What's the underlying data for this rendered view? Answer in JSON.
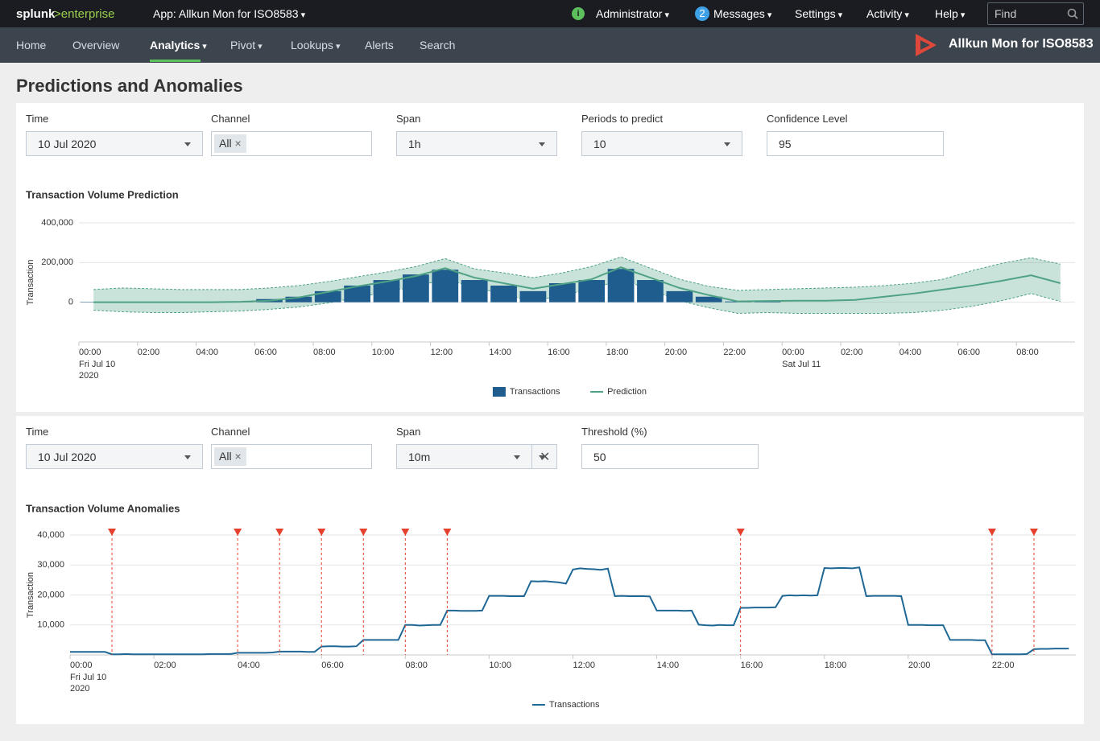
{
  "top_bar": {
    "brand": "splunk",
    "brand_suffix": ">enterprise",
    "app": "App: Allkun Mon for ISO8583",
    "user": "Administrator",
    "messages_count": "2",
    "messages": "Messages",
    "settings": "Settings",
    "activity": "Activity",
    "help": "Help",
    "find": "Find"
  },
  "nav": {
    "items": [
      "Home",
      "Overview",
      "Analytics",
      "Pivot",
      "Lookups",
      "Alerts",
      "Search"
    ],
    "app_title": "Allkun Mon for ISO8583"
  },
  "page_title": "Predictions and Anomalies",
  "panels": [
    {
      "inputs": [
        {
          "label": "Time",
          "value": "10 Jul 2020"
        },
        {
          "label": "Channel",
          "value": "All"
        },
        {
          "label": "Span",
          "value": "1h"
        },
        {
          "label": "Periods to predict",
          "value": "10"
        },
        {
          "label": "Confidence Level",
          "value": "95"
        }
      ]
    },
    {
      "inputs": [
        {
          "label": "Time",
          "value": "10 Jul 2020"
        },
        {
          "label": "Channel",
          "value": "All"
        },
        {
          "label": "Span",
          "value": "10m"
        },
        {
          "label": "Threshold (%)",
          "value": "50"
        }
      ]
    }
  ],
  "chart_data": [
    {
      "type": "bar",
      "title": "Transaction Volume Prediction",
      "y_label": "Transaction",
      "x": [
        "2020-07-10 00:00",
        "2020-07-10 01:00",
        "2020-07-10 02:00",
        "2020-07-10 03:00",
        "2020-07-10 04:00",
        "2020-07-10 05:00",
        "2020-07-10 06:00",
        "2020-07-10 07:00",
        "2020-07-10 08:00",
        "2020-07-10 09:00",
        "2020-07-10 10:00",
        "2020-07-10 11:00",
        "2020-07-10 12:00",
        "2020-07-10 13:00",
        "2020-07-10 14:00",
        "2020-07-10 15:00",
        "2020-07-10 16:00",
        "2020-07-10 17:00",
        "2020-07-10 18:00",
        "2020-07-10 19:00",
        "2020-07-10 20:00",
        "2020-07-10 21:00",
        "2020-07-10 22:00",
        "2020-07-10 23:00",
        "2020-07-11 00:00",
        "2020-07-11 01:00",
        "2020-07-11 02:00",
        "2020-07-11 03:00",
        "2020-07-11 04:00",
        "2020-07-11 05:00",
        "2020-07-11 06:00",
        "2020-07-11 07:00",
        "2020-07-11 08:00",
        "2020-07-11 09:00"
      ],
      "series": [
        {
          "name": "Transactions",
          "type": "bar",
          "color": "#1f5d8e",
          "values": [
            2000,
            1000,
            1000,
            1000,
            1000,
            1000,
            16000,
            28000,
            56000,
            84000,
            112000,
            140000,
            164000,
            112000,
            84000,
            56000,
            96000,
            112000,
            168000,
            112000,
            56000,
            28000,
            4000,
            8000,
            null,
            null,
            null,
            null,
            null,
            null,
            null,
            null,
            null,
            null
          ]
        },
        {
          "name": "Prediction",
          "type": "line",
          "color": "#4fa283",
          "values": [
            0,
            0,
            0,
            0,
            0,
            2000,
            8000,
            24000,
            52000,
            80000,
            104000,
            132000,
            172000,
            124000,
            96000,
            68000,
            92000,
            116000,
            176000,
            124000,
            72000,
            36000,
            4000,
            6000,
            8000,
            8000,
            12000,
            28000,
            44000,
            64000,
            84000,
            108000,
            136000,
            96000
          ]
        }
      ],
      "band": {
        "color": "#4fa283",
        "upper": [
          64000,
          72000,
          68000,
          64000,
          64000,
          64000,
          72000,
          84000,
          104000,
          128000,
          152000,
          180000,
          220000,
          168000,
          148000,
          124000,
          148000,
          180000,
          228000,
          172000,
          116000,
          80000,
          60000,
          64000,
          68000,
          72000,
          76000,
          84000,
          96000,
          116000,
          160000,
          196000,
          224000,
          192000
        ],
        "lower": [
          -40000,
          -48000,
          -52000,
          -52000,
          -48000,
          -44000,
          -36000,
          -24000,
          -4000,
          24000,
          52000,
          80000,
          116000,
          76000,
          40000,
          4000,
          36000,
          64000,
          116000,
          64000,
          8000,
          -28000,
          -56000,
          -52000,
          -56000,
          -56000,
          -56000,
          -56000,
          -52000,
          -40000,
          -20000,
          8000,
          44000,
          4000
        ]
      },
      "xlim": [
        "2020-07-10 00:00",
        "2020-07-11 10:00"
      ],
      "xticks": [
        {
          "value": "2020-07-10 00:00",
          "label": "00:00",
          "sublabel": [
            "Fri Jul 10",
            "2020"
          ]
        },
        {
          "value": "2020-07-10 02:00",
          "label": "02:00"
        },
        {
          "value": "2020-07-10 04:00",
          "label": "04:00"
        },
        {
          "value": "2020-07-10 06:00",
          "label": "06:00"
        },
        {
          "value": "2020-07-10 08:00",
          "label": "08:00"
        },
        {
          "value": "2020-07-10 10:00",
          "label": "10:00"
        },
        {
          "value": "2020-07-10 12:00",
          "label": "12:00"
        },
        {
          "value": "2020-07-10 14:00",
          "label": "14:00"
        },
        {
          "value": "2020-07-10 16:00",
          "label": "16:00"
        },
        {
          "value": "2020-07-10 18:00",
          "label": "18:00"
        },
        {
          "value": "2020-07-10 20:00",
          "label": "20:00"
        },
        {
          "value": "2020-07-10 22:00",
          "label": "22:00"
        },
        {
          "value": "2020-07-11 00:00",
          "label": "00:00",
          "sublabel": [
            "Sat Jul 11"
          ]
        },
        {
          "value": "2020-07-11 02:00",
          "label": "02:00"
        },
        {
          "value": "2020-07-11 04:00",
          "label": "04:00"
        },
        {
          "value": "2020-07-11 06:00",
          "label": "06:00"
        },
        {
          "value": "2020-07-11 08:00",
          "label": "08:00"
        }
      ],
      "ylim": [
        -200000,
        400000
      ],
      "yticks": [
        0,
        {
          "value": 200000,
          "label": "200,000"
        },
        {
          "value": 400000,
          "label": "400,000"
        }
      ],
      "grid": true,
      "legend": "bottom"
    },
    {
      "type": "line",
      "title": "Transaction Volume Anomalies",
      "y_label": "Transaction",
      "x": [
        "2020-07-10 00:00",
        "2020-07-10 00:10",
        "2020-07-10 00:20",
        "2020-07-10 00:30",
        "2020-07-10 00:40",
        "2020-07-10 00:50",
        "2020-07-10 01:00",
        "2020-07-10 01:10",
        "2020-07-10 01:20",
        "2020-07-10 01:30",
        "2020-07-10 01:40",
        "2020-07-10 01:50",
        "2020-07-10 02:00",
        "2020-07-10 02:10",
        "2020-07-10 02:20",
        "2020-07-10 02:30",
        "2020-07-10 02:40",
        "2020-07-10 02:50",
        "2020-07-10 03:00",
        "2020-07-10 03:10",
        "2020-07-10 03:20",
        "2020-07-10 03:30",
        "2020-07-10 03:40",
        "2020-07-10 03:50",
        "2020-07-10 04:00",
        "2020-07-10 04:10",
        "2020-07-10 04:20",
        "2020-07-10 04:30",
        "2020-07-10 04:40",
        "2020-07-10 04:50",
        "2020-07-10 05:00",
        "2020-07-10 05:10",
        "2020-07-10 05:20",
        "2020-07-10 05:30",
        "2020-07-10 05:40",
        "2020-07-10 05:50",
        "2020-07-10 06:00",
        "2020-07-10 06:10",
        "2020-07-10 06:20",
        "2020-07-10 06:30",
        "2020-07-10 06:40",
        "2020-07-10 06:50",
        "2020-07-10 07:00",
        "2020-07-10 07:10",
        "2020-07-10 07:20",
        "2020-07-10 07:30",
        "2020-07-10 07:40",
        "2020-07-10 07:50",
        "2020-07-10 08:00",
        "2020-07-10 08:10",
        "2020-07-10 08:20",
        "2020-07-10 08:30",
        "2020-07-10 08:40",
        "2020-07-10 08:50",
        "2020-07-10 09:00",
        "2020-07-10 09:10",
        "2020-07-10 09:20",
        "2020-07-10 09:30",
        "2020-07-10 09:40",
        "2020-07-10 09:50",
        "2020-07-10 10:00",
        "2020-07-10 10:10",
        "2020-07-10 10:20",
        "2020-07-10 10:30",
        "2020-07-10 10:40",
        "2020-07-10 10:50",
        "2020-07-10 11:00",
        "2020-07-10 11:10",
        "2020-07-10 11:20",
        "2020-07-10 11:30",
        "2020-07-10 11:40",
        "2020-07-10 11:50",
        "2020-07-10 12:00",
        "2020-07-10 12:10",
        "2020-07-10 12:20",
        "2020-07-10 12:30",
        "2020-07-10 12:40",
        "2020-07-10 12:50",
        "2020-07-10 13:00",
        "2020-07-10 13:10",
        "2020-07-10 13:20",
        "2020-07-10 13:30",
        "2020-07-10 13:40",
        "2020-07-10 13:50",
        "2020-07-10 14:00",
        "2020-07-10 14:10",
        "2020-07-10 14:20",
        "2020-07-10 14:30",
        "2020-07-10 14:40",
        "2020-07-10 14:50",
        "2020-07-10 15:00",
        "2020-07-10 15:10",
        "2020-07-10 15:20",
        "2020-07-10 15:30",
        "2020-07-10 15:40",
        "2020-07-10 15:50",
        "2020-07-10 16:00",
        "2020-07-10 16:10",
        "2020-07-10 16:20",
        "2020-07-10 16:30",
        "2020-07-10 16:40",
        "2020-07-10 16:50",
        "2020-07-10 17:00",
        "2020-07-10 17:10",
        "2020-07-10 17:20",
        "2020-07-10 17:30",
        "2020-07-10 17:40",
        "2020-07-10 17:50",
        "2020-07-10 18:00",
        "2020-07-10 18:10",
        "2020-07-10 18:20",
        "2020-07-10 18:30",
        "2020-07-10 18:40",
        "2020-07-10 18:50",
        "2020-07-10 19:00",
        "2020-07-10 19:10",
        "2020-07-10 19:20",
        "2020-07-10 19:30",
        "2020-07-10 19:40",
        "2020-07-10 19:50",
        "2020-07-10 20:00",
        "2020-07-10 20:10",
        "2020-07-10 20:20",
        "2020-07-10 20:30",
        "2020-07-10 20:40",
        "2020-07-10 20:50",
        "2020-07-10 21:00",
        "2020-07-10 21:10",
        "2020-07-10 21:20",
        "2020-07-10 21:30",
        "2020-07-10 21:40",
        "2020-07-10 21:50",
        "2020-07-10 22:00",
        "2020-07-10 22:10",
        "2020-07-10 22:20",
        "2020-07-10 22:30",
        "2020-07-10 22:40",
        "2020-07-10 22:50",
        "2020-07-10 23:00",
        "2020-07-10 23:10",
        "2020-07-10 23:20",
        "2020-07-10 23:30",
        "2020-07-10 23:40",
        "2020-07-10 23:50"
      ],
      "series": [
        {
          "name": "Transactions",
          "type": "line",
          "color": "#1f6896",
          "values": [
            1000,
            1000,
            1000,
            1000,
            1000,
            1000,
            200,
            200,
            300,
            200,
            200,
            200,
            200,
            200,
            200,
            200,
            200,
            200,
            200,
            200,
            300,
            300,
            300,
            300,
            700,
            700,
            700,
            700,
            700,
            800,
            1100,
            1100,
            1100,
            1100,
            1000,
            1000,
            2800,
            2900,
            2900,
            2800,
            2800,
            2900,
            5000,
            5000,
            5000,
            5000,
            5000,
            5000,
            10000,
            10000,
            9800,
            9900,
            10000,
            10000,
            14800,
            14800,
            14700,
            14700,
            14700,
            14800,
            19700,
            19700,
            19700,
            19600,
            19600,
            19600,
            24600,
            24500,
            24600,
            24400,
            24200,
            23800,
            28500,
            28900,
            28700,
            28600,
            28400,
            28800,
            19600,
            19700,
            19600,
            19600,
            19600,
            19500,
            14800,
            14800,
            14800,
            14800,
            14700,
            14800,
            10100,
            9900,
            9800,
            10000,
            9900,
            9900,
            15700,
            15700,
            15800,
            15800,
            15800,
            15900,
            19700,
            19900,
            19800,
            19900,
            19800,
            19900,
            29000,
            28900,
            29000,
            29000,
            28900,
            29200,
            19600,
            19700,
            19700,
            19700,
            19700,
            19600,
            10000,
            10000,
            10000,
            9900,
            9900,
            9900,
            5000,
            5000,
            5000,
            5000,
            4900,
            4900,
            200,
            200,
            200,
            200,
            200,
            300,
            1900,
            2000,
            2000,
            2100,
            2100,
            2100
          ]
        }
      ],
      "anomalies": {
        "color": "#e5412e",
        "x": [
          "2020-07-10 01:00",
          "2020-07-10 04:00",
          "2020-07-10 05:00",
          "2020-07-10 06:00",
          "2020-07-10 07:00",
          "2020-07-10 08:00",
          "2020-07-10 09:00",
          "2020-07-10 16:00",
          "2020-07-10 22:00",
          "2020-07-10 23:00"
        ]
      },
      "xlim": [
        "2020-07-10 00:00",
        "2020-07-11 00:00"
      ],
      "xticks": [
        {
          "value": "2020-07-10 00:00",
          "label": "00:00",
          "sublabel": [
            "Fri Jul 10",
            "2020"
          ]
        },
        {
          "value": "2020-07-10 02:00",
          "label": "02:00"
        },
        {
          "value": "2020-07-10 04:00",
          "label": "04:00"
        },
        {
          "value": "2020-07-10 06:00",
          "label": "06:00"
        },
        {
          "value": "2020-07-10 08:00",
          "label": "08:00"
        },
        {
          "value": "2020-07-10 10:00",
          "label": "10:00"
        },
        {
          "value": "2020-07-10 12:00",
          "label": "12:00"
        },
        {
          "value": "2020-07-10 14:00",
          "label": "14:00"
        },
        {
          "value": "2020-07-10 16:00",
          "label": "16:00"
        },
        {
          "value": "2020-07-10 18:00",
          "label": "18:00"
        },
        {
          "value": "2020-07-10 20:00",
          "label": "20:00"
        },
        {
          "value": "2020-07-10 22:00",
          "label": "22:00"
        }
      ],
      "ylim": [
        0,
        40000
      ],
      "yticks": [
        {
          "value": 10000,
          "label": "10,000"
        },
        {
          "value": 20000,
          "label": "20,000"
        },
        {
          "value": 30000,
          "label": "30,000"
        },
        {
          "value": 40000,
          "label": "40,000"
        }
      ],
      "grid": true,
      "legend": "bottom"
    }
  ]
}
